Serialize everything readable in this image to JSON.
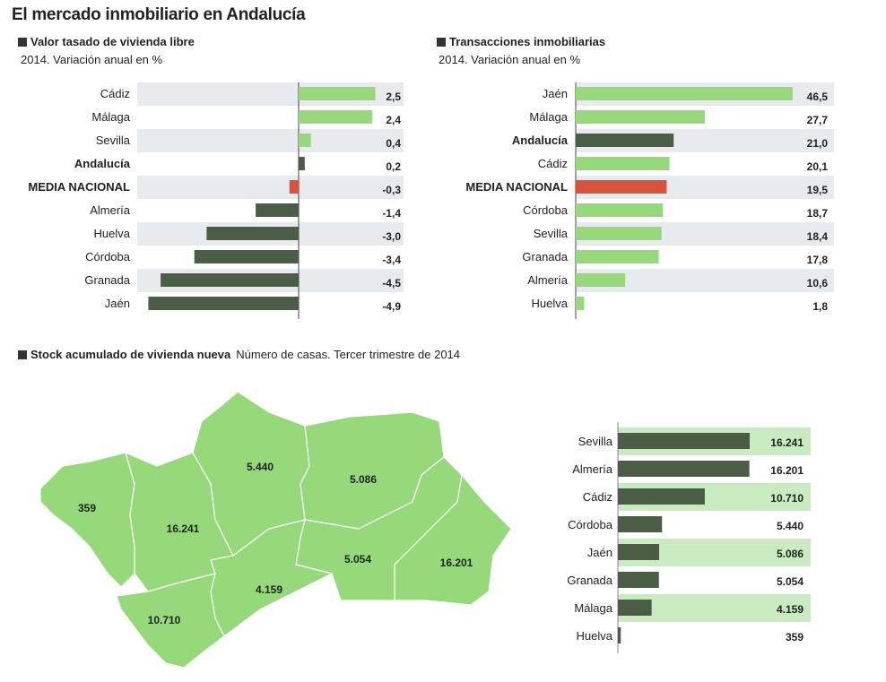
{
  "title": "El mercado inmobiliario en Andalucía",
  "colors": {
    "band_gray": "#e8ebee",
    "band_green": "#c8ecc0",
    "light_green": "#95d97a",
    "dark_green": "#4a5e45",
    "red": "#d9533b",
    "map_fill": "#95d97a"
  },
  "chart_data": [
    {
      "type": "bar",
      "orientation": "horizontal",
      "title": "Valor tasado de vivienda libre",
      "subtitle": "2014. Variación anual en %",
      "categories": [
        "Cádiz",
        "Málaga",
        "Sevilla",
        "Andalucía",
        "MEDIA NACIONAL",
        "Almería",
        "Huelva",
        "Córdoba",
        "Granada",
        "Jaén"
      ],
      "values": [
        2.5,
        2.4,
        0.4,
        0.2,
        -0.3,
        -1.4,
        -3.0,
        -3.4,
        -4.5,
        -4.9
      ],
      "labels": [
        "2,5",
        "2,4",
        "0,4",
        "0,2",
        "-0,3",
        "-1,4",
        "-3,0",
        "-3,4",
        "-4,5",
        "-4,9"
      ],
      "xlim": [
        -5.2,
        3.4
      ]
    },
    {
      "type": "bar",
      "orientation": "horizontal",
      "title": "Transacciones inmobiliarias",
      "subtitle": "2014. Variación anual en %",
      "categories": [
        "Jaén",
        "Málaga",
        "Andalucía",
        "Cádiz",
        "MEDIA NACIONAL",
        "Córdoba",
        "Sevilla",
        "Granada",
        "Almería",
        "Huelva"
      ],
      "values": [
        46.5,
        27.7,
        21.0,
        20.1,
        19.5,
        18.7,
        18.4,
        17.8,
        10.6,
        1.8
      ],
      "labels": [
        "46,5",
        "27,7",
        "21,0",
        "20,1",
        "19,5",
        "18,7",
        "18,4",
        "17,8",
        "10,6",
        "1,8"
      ],
      "xlim": [
        0,
        55
      ]
    },
    {
      "type": "bar",
      "orientation": "horizontal",
      "title": "Stock acumulado de vivienda nueva",
      "subtitle": "Número de casas. Tercer trimestre de 2014",
      "categories": [
        "Sevilla",
        "Almería",
        "Cádiz",
        "Córdoba",
        "Jaén",
        "Granada",
        "Málaga",
        "Huelva"
      ],
      "values": [
        16241,
        16201,
        10710,
        5440,
        5086,
        5054,
        4159,
        359
      ],
      "labels": [
        "16.241",
        "16.201",
        "10.710",
        "5.440",
        "5.086",
        "5.054",
        "4.159",
        "359"
      ],
      "xlim": [
        0,
        23800
      ]
    }
  ],
  "map": {
    "provinces": [
      {
        "name": "Huelva",
        "label": "359"
      },
      {
        "name": "Sevilla",
        "label": "16.241"
      },
      {
        "name": "Córdoba",
        "label": "5.440"
      },
      {
        "name": "Jaén",
        "label": "5.086"
      },
      {
        "name": "Granada",
        "label": "5.054"
      },
      {
        "name": "Almería",
        "label": "16.201"
      },
      {
        "name": "Málaga",
        "label": "4.159"
      },
      {
        "name": "Cádiz",
        "label": "10.710"
      }
    ]
  }
}
